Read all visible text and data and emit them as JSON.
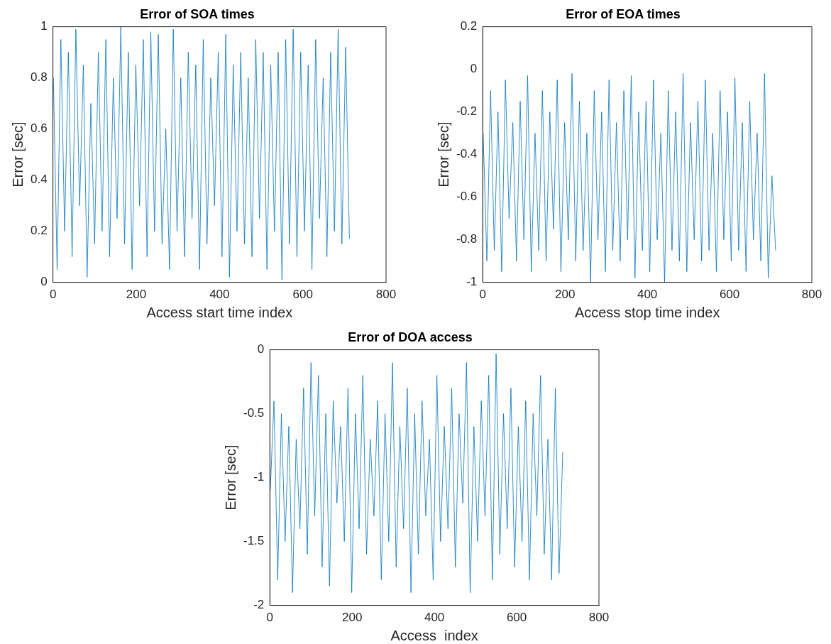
{
  "chart_data": [
    {
      "type": "line",
      "title": "Error of SOA times",
      "xlabel": "Access start time index",
      "ylabel": "Error [sec]",
      "xlim": [
        0,
        800
      ],
      "xticks": [
        0,
        200,
        400,
        600,
        800
      ],
      "ylim": [
        0,
        1
      ],
      "yticks": [
        0,
        0.2,
        0.4,
        0.6,
        0.8,
        1
      ],
      "grid": false,
      "x": [
        1,
        10,
        19,
        28,
        37,
        46,
        55,
        64,
        73,
        82,
        91,
        100,
        109,
        118,
        127,
        136,
        145,
        154,
        163,
        172,
        181,
        190,
        199,
        208,
        217,
        226,
        235,
        244,
        253,
        262,
        271,
        280,
        289,
        298,
        307,
        316,
        325,
        334,
        343,
        352,
        361,
        370,
        379,
        388,
        397,
        406,
        415,
        424,
        433,
        442,
        451,
        460,
        469,
        478,
        487,
        496,
        505,
        514,
        523,
        532,
        541,
        550,
        559,
        568,
        577,
        586,
        595,
        604,
        613,
        622,
        631,
        640,
        649,
        658,
        667,
        676,
        685,
        694,
        703,
        712
      ],
      "series": [
        {
          "color": "#0072bd",
          "values": [
            0.8,
            0.05,
            0.95,
            0.2,
            0.9,
            0.1,
            0.99,
            0.3,
            0.85,
            0.02,
            0.7,
            0.15,
            0.9,
            0.2,
            0.95,
            0.1,
            0.8,
            0.25,
            1.0,
            0.15,
            0.9,
            0.05,
            0.85,
            0.3,
            0.95,
            0.1,
            0.98,
            0.2,
            0.97,
            0.15,
            0.6,
            0.05,
            0.99,
            0.2,
            0.8,
            0.1,
            0.9,
            0.25,
            0.85,
            0.05,
            0.95,
            0.15,
            0.8,
            0.3,
            0.9,
            0.1,
            0.97,
            0.02,
            0.85,
            0.2,
            0.9,
            0.15,
            0.8,
            0.1,
            0.95,
            0.25,
            0.9,
            0.05,
            0.85,
            0.2,
            0.9,
            0.01,
            0.95,
            0.15,
            0.99,
            0.1,
            0.9,
            0.2,
            0.85,
            0.05,
            0.95,
            0.25,
            0.8,
            0.1,
            0.9,
            0.2,
            0.99,
            0.15,
            0.92,
            0.17
          ]
        }
      ]
    },
    {
      "type": "line",
      "title": "Error of EOA times",
      "xlabel": "Access stop time index",
      "ylabel": "Error [sec]",
      "xlim": [
        0,
        800
      ],
      "xticks": [
        0,
        200,
        400,
        600,
        800
      ],
      "ylim": [
        -1,
        0.2
      ],
      "yticks": [
        -1,
        -0.8,
        -0.6,
        -0.4,
        -0.2,
        0,
        0.2
      ],
      "grid": false,
      "x": [
        1,
        10,
        19,
        28,
        37,
        46,
        55,
        64,
        73,
        82,
        91,
        100,
        109,
        118,
        127,
        136,
        145,
        154,
        163,
        172,
        181,
        190,
        199,
        208,
        217,
        226,
        235,
        244,
        253,
        262,
        271,
        280,
        289,
        298,
        307,
        316,
        325,
        334,
        343,
        352,
        361,
        370,
        379,
        388,
        397,
        406,
        415,
        424,
        433,
        442,
        451,
        460,
        469,
        478,
        487,
        496,
        505,
        514,
        523,
        532,
        541,
        550,
        559,
        568,
        577,
        586,
        595,
        604,
        613,
        622,
        631,
        640,
        649,
        658,
        667,
        676,
        685,
        694,
        703,
        712
      ],
      "series": [
        {
          "color": "#0072bd",
          "values": [
            -0.3,
            -0.9,
            -0.1,
            -0.85,
            -0.2,
            -0.95,
            -0.05,
            -0.7,
            -0.25,
            -0.9,
            -0.15,
            -0.8,
            -0.03,
            -0.95,
            -0.3,
            -0.85,
            -0.1,
            -0.9,
            -0.2,
            -0.75,
            -0.05,
            -0.95,
            -0.25,
            -0.8,
            -0.02,
            -0.9,
            -0.15,
            -0.85,
            -0.3,
            -1.0,
            -0.1,
            -0.8,
            -0.2,
            -0.95,
            -0.05,
            -0.85,
            -0.25,
            -0.9,
            -0.1,
            -0.8,
            -0.03,
            -0.98,
            -0.2,
            -0.85,
            -0.15,
            -0.95,
            -0.05,
            -0.8,
            -0.3,
            -1.0,
            -0.1,
            -0.85,
            -0.2,
            -0.9,
            -0.02,
            -0.95,
            -0.25,
            -0.8,
            -0.15,
            -0.9,
            -0.05,
            -0.85,
            -0.3,
            -0.95,
            -0.1,
            -0.8,
            -0.2,
            -0.9,
            -0.04,
            -0.85,
            -0.25,
            -0.95,
            -0.15,
            -0.8,
            -0.3,
            -0.9,
            -0.02,
            -0.98,
            -0.5,
            -0.85
          ]
        }
      ]
    },
    {
      "type": "line",
      "title": "Error of DOA access",
      "xlabel": "Access  index",
      "ylabel": "Error [sec]",
      "xlim": [
        0,
        800
      ],
      "xticks": [
        0,
        200,
        400,
        600,
        800
      ],
      "ylim": [
        -2,
        0
      ],
      "yticks": [
        -2,
        -1.5,
        -1,
        -0.5,
        0
      ],
      "grid": false,
      "x": [
        1,
        10,
        19,
        28,
        37,
        46,
        55,
        64,
        73,
        82,
        91,
        100,
        109,
        118,
        127,
        136,
        145,
        154,
        163,
        172,
        181,
        190,
        199,
        208,
        217,
        226,
        235,
        244,
        253,
        262,
        271,
        280,
        289,
        298,
        307,
        316,
        325,
        334,
        343,
        352,
        361,
        370,
        379,
        388,
        397,
        406,
        415,
        424,
        433,
        442,
        451,
        460,
        469,
        478,
        487,
        496,
        505,
        514,
        523,
        532,
        541,
        550,
        559,
        568,
        577,
        586,
        595,
        604,
        613,
        622,
        631,
        640,
        649,
        658,
        667,
        676,
        685,
        694,
        703,
        712
      ],
      "series": [
        {
          "color": "#0072bd",
          "values": [
            -1.1,
            -0.4,
            -1.8,
            -0.5,
            -1.5,
            -0.6,
            -1.9,
            -0.7,
            -1.4,
            -0.3,
            -1.6,
            -0.1,
            -1.3,
            -0.2,
            -1.7,
            -0.5,
            -1.85,
            -0.4,
            -1.2,
            -0.6,
            -1.5,
            -0.3,
            -1.9,
            -0.5,
            -1.4,
            -0.2,
            -1.6,
            -0.7,
            -1.3,
            -0.4,
            -1.8,
            -0.5,
            -1.5,
            -0.1,
            -1.7,
            -0.6,
            -1.4,
            -0.3,
            -1.9,
            -0.5,
            -1.6,
            -0.4,
            -1.3,
            -0.7,
            -1.8,
            -0.2,
            -1.5,
            -0.6,
            -1.4,
            -0.3,
            -1.7,
            -0.5,
            -1.2,
            -0.1,
            -1.9,
            -0.6,
            -1.5,
            -0.4,
            -1.3,
            -0.2,
            -1.8,
            -0.03,
            -1.6,
            -0.5,
            -1.4,
            -0.3,
            -1.7,
            -0.6,
            -1.5,
            -0.4,
            -1.8,
            -0.5,
            -1.3,
            -0.2,
            -1.6,
            -0.7,
            -1.8,
            -0.3,
            -1.75,
            -0.8
          ]
        }
      ]
    }
  ]
}
